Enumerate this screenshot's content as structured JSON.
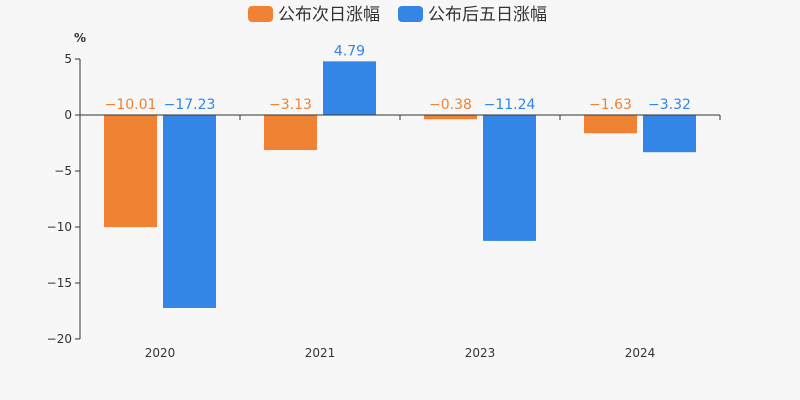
{
  "chart_data": {
    "type": "bar",
    "unit": "%",
    "categories": [
      "2020",
      "2021",
      "2023",
      "2024"
    ],
    "series": [
      {
        "name": "公布次日涨幅",
        "color": "#f08234",
        "values": [
          -10.01,
          -3.13,
          -0.38,
          -1.63
        ],
        "labels": [
          "−10.01",
          "−3.13",
          "−0.38",
          "−1.63"
        ]
      },
      {
        "name": "公布后五日涨幅",
        "color": "#3385e6",
        "values": [
          -17.23,
          4.79,
          -11.24,
          -3.32
        ],
        "labels": [
          "−17.23",
          "4.79",
          "−11.24",
          "−3.32"
        ]
      }
    ],
    "y_ticks": [
      5,
      0,
      -5,
      -10,
      -15,
      -20
    ],
    "y_tick_labels": [
      "5",
      "0",
      "−5",
      "−10",
      "−15",
      "−20"
    ],
    "ylim": [
      -20,
      5
    ],
    "grid": false,
    "legend_position": "top-center"
  }
}
